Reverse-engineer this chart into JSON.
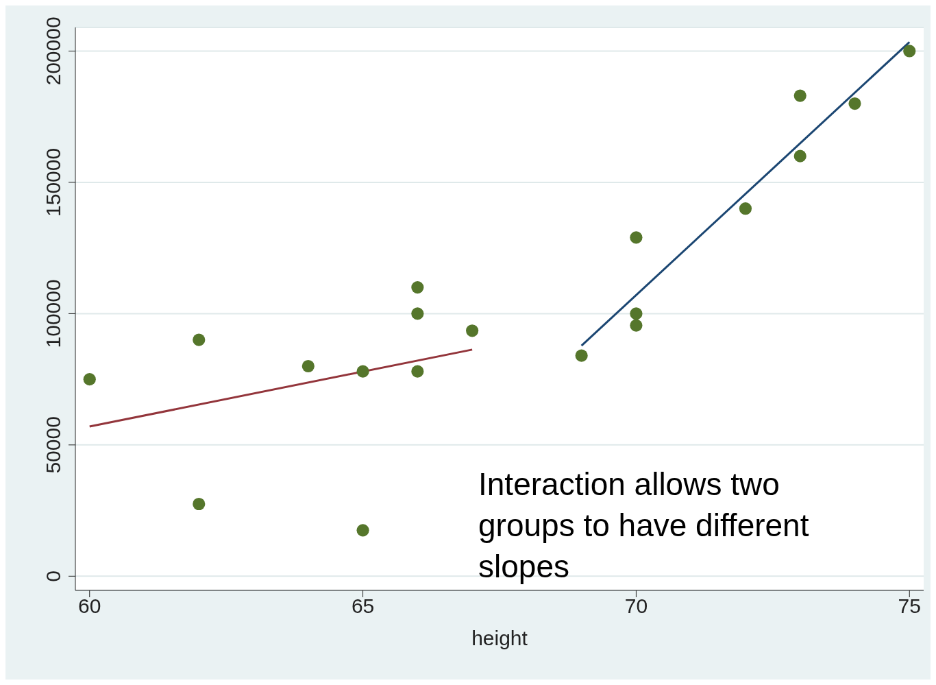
{
  "chart_data": {
    "type": "scatter",
    "xlabel": "height",
    "xlim": [
      59.74,
      75.26
    ],
    "xticks": [
      60,
      65,
      70,
      75
    ],
    "ylim": [
      -5400,
      209000
    ],
    "yticks": [
      0,
      50000,
      100000,
      150000,
      200000
    ],
    "grid": "y",
    "series": [
      {
        "marker": "circle",
        "color": "#55762b",
        "x": [
          60,
          62,
          62,
          64,
          65,
          65,
          66,
          66,
          66,
          67,
          69,
          70,
          70,
          70,
          72,
          73,
          73,
          74,
          75
        ],
        "values": [
          75000,
          90000,
          27500,
          80000,
          78000,
          17500,
          110000,
          100000,
          78000,
          93500,
          84000,
          129000,
          100000,
          95500,
          140000,
          183000,
          160000,
          180000,
          200000
        ]
      },
      {
        "type": "line",
        "color": "#93353b",
        "x": [
          60,
          67
        ],
        "values": [
          57000,
          86300
        ]
      },
      {
        "type": "line",
        "color": "#1b4672",
        "x": [
          69,
          75
        ],
        "values": [
          87800,
          203400
        ]
      }
    ],
    "annotations": [
      "Interaction allows two groups to have different slopes"
    ]
  }
}
